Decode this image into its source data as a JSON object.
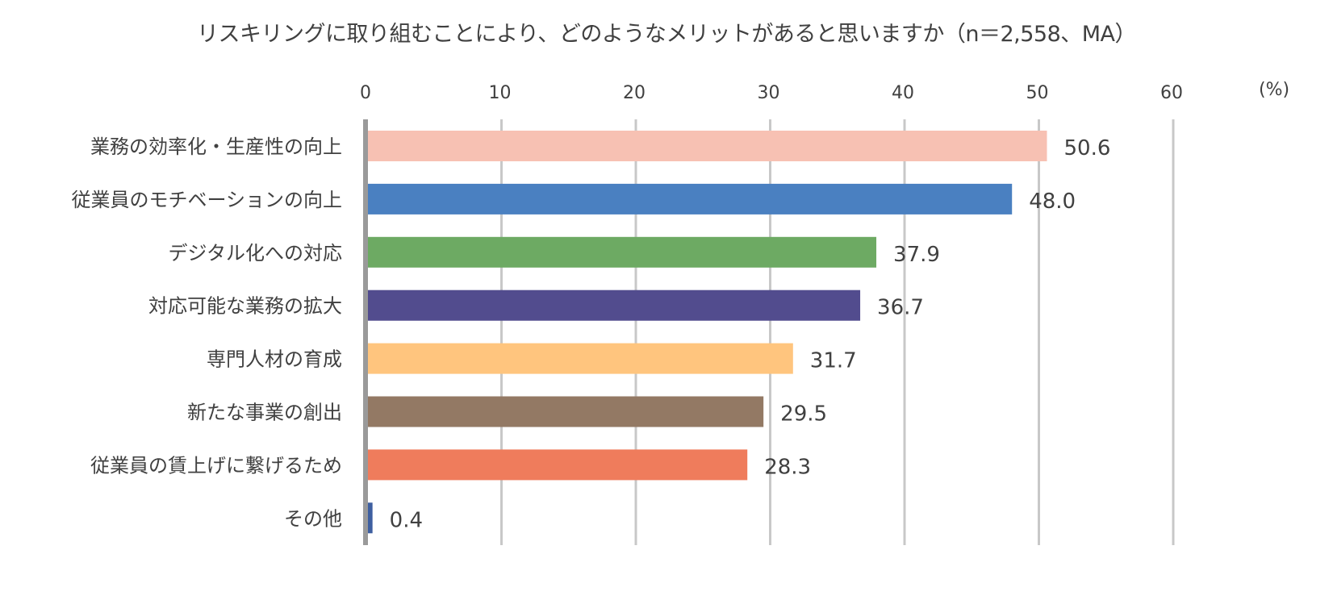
{
  "chart_data": {
    "type": "bar",
    "orientation": "horizontal",
    "title": "リスキリングに取り組むことにより、どのようなメリットがあると思いますか（n＝2,558、MA）",
    "unit": "(%)",
    "xlim": [
      0,
      60
    ],
    "ticks": [
      "0",
      "10",
      "20",
      "30",
      "40",
      "50",
      "60"
    ],
    "grid": true,
    "legend": "none",
    "categories": [
      "業務の効率化・生産性の向上",
      "従業員のモチベーションの向上",
      "デジタル化への対応",
      "対応可能な業務の拡大",
      "専門人材の育成",
      "新たな事業の創出",
      "従業員の賃上げに繋げるため",
      "その他"
    ],
    "values": [
      50.6,
      48.0,
      37.9,
      36.7,
      31.7,
      29.5,
      28.3,
      0.4
    ],
    "value_labels": [
      "50.6",
      "48.0",
      "37.9",
      "36.7",
      "31.7",
      "29.5",
      "28.3",
      "0.4"
    ],
    "colors": [
      "#F7C1B3",
      "#4A80C1",
      "#6DAA63",
      "#524C8E",
      "#FFC57E",
      "#937964",
      "#EF7C5C",
      "#3E5FA0"
    ],
    "gridline_color": "#C8C8C8",
    "axis_color": "#9A9A9A",
    "text_color": "#404040"
  }
}
